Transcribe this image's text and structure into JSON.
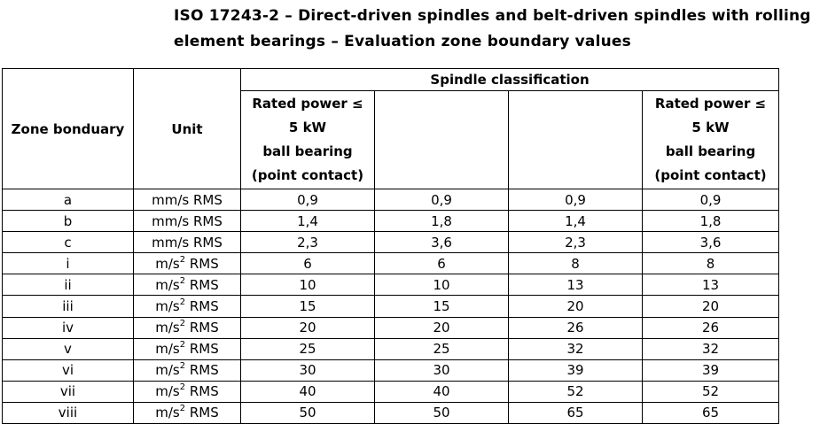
{
  "title": {
    "line1": "ISO 17243-2 – Direct-driven spindles and belt-driven spindles with rolling",
    "line2": "element bearings – Evaluation zone boundary values"
  },
  "table": {
    "col_zone": "Zone bonduary",
    "col_unit": "Unit",
    "group_header": "Spindle classification",
    "sub_headers": [
      {
        "lines": [
          "Rated power ≤",
          "5 kW",
          "ball bearing",
          "(point contact)"
        ]
      },
      {
        "lines": []
      },
      {
        "lines": []
      },
      {
        "lines": [
          "Rated power ≤",
          "5 kW",
          "ball bearing",
          "(point contact)"
        ]
      }
    ],
    "rows": [
      {
        "zone": "a",
        "unit_base": "mm/s RMS",
        "unit_exp": "",
        "unit_suffix": "",
        "values": [
          "0,9",
          "0,9",
          "0,9",
          "0,9"
        ]
      },
      {
        "zone": "b",
        "unit_base": "mm/s RMS",
        "unit_exp": "",
        "unit_suffix": "",
        "values": [
          "1,4",
          "1,8",
          "1,4",
          "1,8"
        ]
      },
      {
        "zone": "c",
        "unit_base": "mm/s RMS",
        "unit_exp": "",
        "unit_suffix": "",
        "values": [
          "2,3",
          "3,6",
          "2,3",
          "3,6"
        ]
      },
      {
        "zone": "i",
        "unit_base": "m/s",
        "unit_exp": "2",
        "unit_suffix": " RMS",
        "values": [
          "6",
          "6",
          "8",
          "8"
        ]
      },
      {
        "zone": "ii",
        "unit_base": "m/s",
        "unit_exp": "2",
        "unit_suffix": " RMS",
        "values": [
          "10",
          "10",
          "13",
          "13"
        ]
      },
      {
        "zone": "iii",
        "unit_base": "m/s",
        "unit_exp": "2",
        "unit_suffix": " RMS",
        "values": [
          "15",
          "15",
          "20",
          "20"
        ]
      },
      {
        "zone": "iv",
        "unit_base": "m/s",
        "unit_exp": "2",
        "unit_suffix": " RMS",
        "values": [
          "20",
          "20",
          "26",
          "26"
        ]
      },
      {
        "zone": "v",
        "unit_base": "m/s",
        "unit_exp": "2",
        "unit_suffix": " RMS",
        "values": [
          "25",
          "25",
          "32",
          "32"
        ]
      },
      {
        "zone": "vi",
        "unit_base": "m/s",
        "unit_exp": "2",
        "unit_suffix": " RMS",
        "values": [
          "30",
          "30",
          "39",
          "39"
        ]
      },
      {
        "zone": "vii",
        "unit_base": "m/s",
        "unit_exp": "2",
        "unit_suffix": " RMS",
        "values": [
          "40",
          "40",
          "52",
          "52"
        ]
      },
      {
        "zone": "viii",
        "unit_base": "m/s",
        "unit_exp": "2",
        "unit_suffix": " RMS",
        "values": [
          "50",
          "50",
          "65",
          "65"
        ]
      }
    ]
  }
}
